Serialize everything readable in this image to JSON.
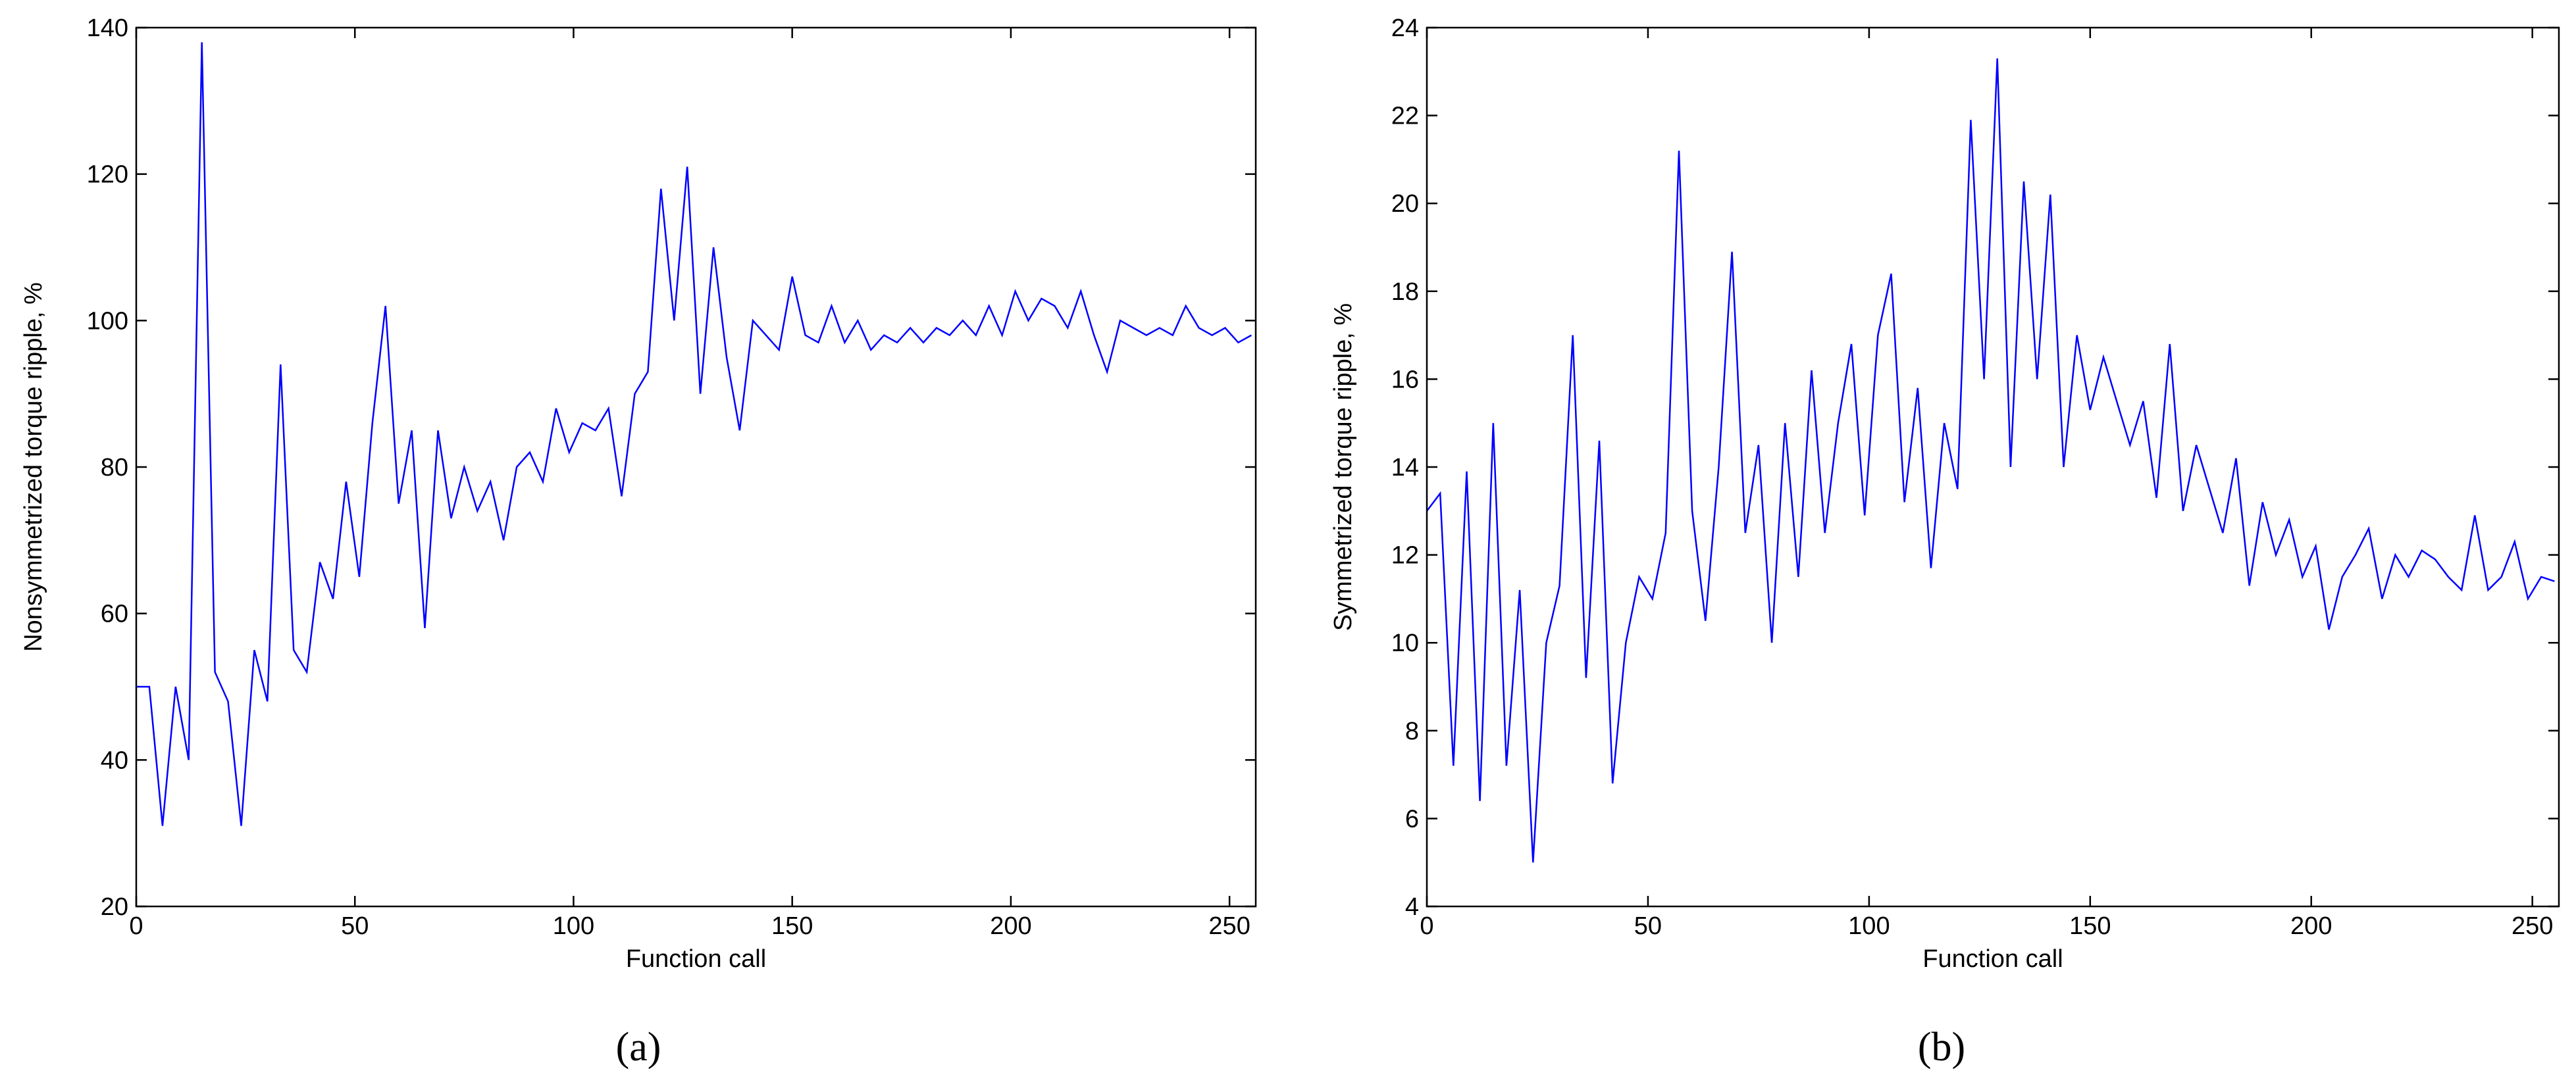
{
  "chart_data": [
    {
      "type": "line",
      "xlabel": "Function call",
      "ylabel": "Nonsymmetrized torque ripple, %",
      "caption": "(a)",
      "x": [
        0,
        3,
        6,
        9,
        12,
        15,
        18,
        21,
        24,
        27,
        30,
        33,
        36,
        39,
        42,
        45,
        48,
        51,
        54,
        57,
        60,
        63,
        66,
        69,
        72,
        75,
        78,
        81,
        84,
        87,
        90,
        93,
        96,
        99,
        102,
        105,
        108,
        111,
        114,
        117,
        120,
        123,
        126,
        129,
        132,
        135,
        138,
        141,
        144,
        147,
        150,
        153,
        156,
        159,
        162,
        165,
        168,
        171,
        174,
        177,
        180,
        183,
        186,
        189,
        192,
        195,
        198,
        201,
        204,
        207,
        210,
        213,
        216,
        219,
        222,
        225,
        228,
        231,
        234,
        237,
        240,
        243,
        246,
        249,
        252,
        255
      ],
      "series": [
        {
          "color": "#0000ff",
          "values": [
            50,
            50,
            31,
            50,
            40,
            138,
            52,
            48,
            31,
            55,
            48,
            94,
            55,
            52,
            67,
            62,
            78,
            65,
            86,
            102,
            75,
            85,
            58,
            85,
            73,
            80,
            74,
            78,
            70,
            80,
            82,
            78,
            88,
            82,
            86,
            85,
            88,
            76,
            90,
            93,
            118,
            100,
            121,
            90,
            110,
            95,
            85,
            100,
            98,
            96,
            106,
            98,
            97,
            102,
            97,
            100,
            96,
            98,
            97,
            99,
            97,
            99,
            98,
            100,
            98,
            102,
            98,
            104,
            100,
            103,
            102,
            99,
            104,
            98,
            93,
            100,
            99,
            98,
            99,
            98,
            102,
            99,
            98,
            99,
            97,
            98
          ]
        }
      ],
      "xlim": [
        0,
        256
      ],
      "xticks": [
        0,
        50,
        100,
        150,
        200,
        250
      ],
      "ylim": [
        20,
        140
      ],
      "yticks": [
        20,
        40,
        60,
        80,
        100,
        120,
        140
      ]
    },
    {
      "type": "line",
      "xlabel": "Function call",
      "ylabel": "Symmetrized torque ripple, %",
      "caption": "(b)",
      "x": [
        0,
        3,
        6,
        9,
        12,
        15,
        18,
        21,
        24,
        27,
        30,
        33,
        36,
        39,
        42,
        45,
        48,
        51,
        54,
        57,
        60,
        63,
        66,
        69,
        72,
        75,
        78,
        81,
        84,
        87,
        90,
        93,
        96,
        99,
        102,
        105,
        108,
        111,
        114,
        117,
        120,
        123,
        126,
        129,
        132,
        135,
        138,
        141,
        144,
        147,
        150,
        153,
        156,
        159,
        162,
        165,
        168,
        171,
        174,
        177,
        180,
        183,
        186,
        189,
        192,
        195,
        198,
        201,
        204,
        207,
        210,
        213,
        216,
        219,
        222,
        225,
        228,
        231,
        234,
        237,
        240,
        243,
        246,
        249,
        252,
        255
      ],
      "series": [
        {
          "color": "#0000ff",
          "values": [
            13,
            13.4,
            7.2,
            13.9,
            6.4,
            15,
            7.2,
            11.2,
            5,
            10,
            11.3,
            17,
            9.2,
            14.6,
            6.8,
            10,
            11.5,
            11,
            12.5,
            21.2,
            13,
            10.5,
            14,
            18.9,
            12.5,
            14.5,
            10,
            15,
            11.5,
            16.2,
            12.5,
            15,
            16.8,
            12.9,
            17,
            18.4,
            13.2,
            15.8,
            11.7,
            15,
            13.5,
            21.9,
            16,
            23.3,
            14,
            20.5,
            16,
            20.2,
            14,
            17,
            15.3,
            16.5,
            15.5,
            14.5,
            15.5,
            13.3,
            16.8,
            13,
            14.5,
            13.5,
            12.5,
            14.2,
            11.3,
            13.2,
            12,
            12.8,
            11.5,
            12.2,
            10.3,
            11.5,
            12,
            12.6,
            11,
            12,
            11.5,
            12.1,
            11.9,
            11.5,
            11.2,
            12.9,
            11.2,
            11.5,
            12.3,
            11,
            11.5,
            11.4
          ]
        }
      ],
      "xlim": [
        0,
        256
      ],
      "xticks": [
        0,
        50,
        100,
        150,
        200,
        250
      ],
      "ylim": [
        4,
        24
      ],
      "yticks": [
        4,
        6,
        8,
        10,
        12,
        14,
        16,
        18,
        20,
        22,
        24
      ]
    }
  ]
}
